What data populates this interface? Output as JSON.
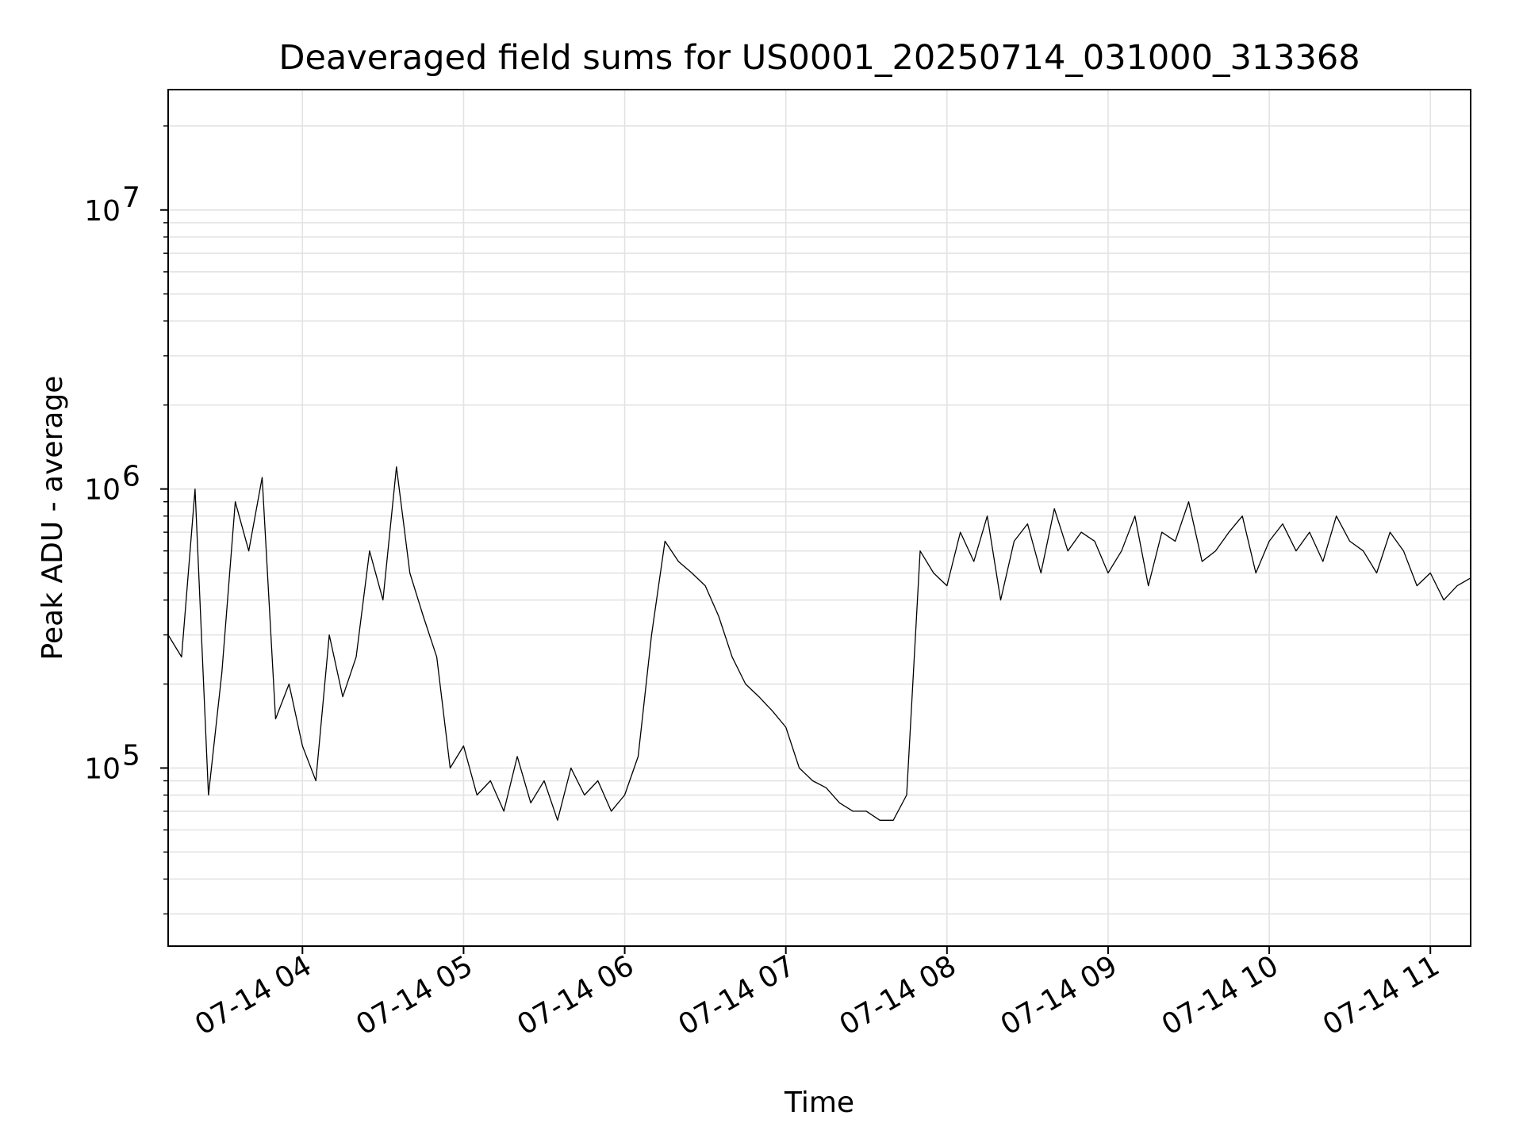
{
  "chart_data": {
    "type": "line",
    "title": "Deaveraged field sums for US0001_20250714_031000_313368",
    "xlabel": "Time",
    "ylabel": "Peak ADU - average",
    "x_axis_type": "time",
    "y_scale": "log",
    "xlim": [
      "2025-07-14 03:10",
      "2025-07-14 11:15"
    ],
    "ylim": [
      23000,
      27000000
    ],
    "grid": true,
    "legend": "none",
    "line_color": "#000000",
    "x_ticks": [
      {
        "value": "2025-07-14 04:00",
        "label": "07-14 04"
      },
      {
        "value": "2025-07-14 05:00",
        "label": "07-14 05"
      },
      {
        "value": "2025-07-14 06:00",
        "label": "07-14 06"
      },
      {
        "value": "2025-07-14 07:00",
        "label": "07-14 07"
      },
      {
        "value": "2025-07-14 08:00",
        "label": "07-14 08"
      },
      {
        "value": "2025-07-14 09:00",
        "label": "07-14 09"
      },
      {
        "value": "2025-07-14 10:00",
        "label": "07-14 10"
      },
      {
        "value": "2025-07-14 11:00",
        "label": "07-14 11"
      }
    ],
    "y_ticks": [
      {
        "value": 100000,
        "base": "10",
        "exp": "5"
      },
      {
        "value": 1000000,
        "base": "10",
        "exp": "6"
      },
      {
        "value": 10000000,
        "base": "10",
        "exp": "7"
      }
    ],
    "series": [
      {
        "x": [
          "2025-07-14 03:10",
          "2025-07-14 03:15",
          "2025-07-14 03:20",
          "2025-07-14 03:25",
          "2025-07-14 03:30",
          "2025-07-14 03:35",
          "2025-07-14 03:40",
          "2025-07-14 03:45",
          "2025-07-14 03:50",
          "2025-07-14 03:55",
          "2025-07-14 04:00",
          "2025-07-14 04:05",
          "2025-07-14 04:10",
          "2025-07-14 04:15",
          "2025-07-14 04:20",
          "2025-07-14 04:25",
          "2025-07-14 04:30",
          "2025-07-14 04:35",
          "2025-07-14 04:40",
          "2025-07-14 04:45",
          "2025-07-14 04:50",
          "2025-07-14 04:55",
          "2025-07-14 05:00",
          "2025-07-14 05:05",
          "2025-07-14 05:10",
          "2025-07-14 05:15",
          "2025-07-14 05:20",
          "2025-07-14 05:25",
          "2025-07-14 05:30",
          "2025-07-14 05:35",
          "2025-07-14 05:40",
          "2025-07-14 05:45",
          "2025-07-14 05:50",
          "2025-07-14 05:55",
          "2025-07-14 06:00",
          "2025-07-14 06:05",
          "2025-07-14 06:10",
          "2025-07-14 06:15",
          "2025-07-14 06:20",
          "2025-07-14 06:25",
          "2025-07-14 06:30",
          "2025-07-14 06:35",
          "2025-07-14 06:40",
          "2025-07-14 06:45",
          "2025-07-14 06:50",
          "2025-07-14 06:55",
          "2025-07-14 07:00",
          "2025-07-14 07:05",
          "2025-07-14 07:10",
          "2025-07-14 07:15",
          "2025-07-14 07:20",
          "2025-07-14 07:25",
          "2025-07-14 07:30",
          "2025-07-14 07:35",
          "2025-07-14 07:40",
          "2025-07-14 07:45",
          "2025-07-14 07:50",
          "2025-07-14 07:55",
          "2025-07-14 08:00",
          "2025-07-14 08:05",
          "2025-07-14 08:10",
          "2025-07-14 08:15",
          "2025-07-14 08:20",
          "2025-07-14 08:25",
          "2025-07-14 08:30",
          "2025-07-14 08:35",
          "2025-07-14 08:40",
          "2025-07-14 08:45",
          "2025-07-14 08:50",
          "2025-07-14 08:55",
          "2025-07-14 09:00",
          "2025-07-14 09:05",
          "2025-07-14 09:10",
          "2025-07-14 09:15",
          "2025-07-14 09:20",
          "2025-07-14 09:25",
          "2025-07-14 09:30",
          "2025-07-14 09:35",
          "2025-07-14 09:40",
          "2025-07-14 09:45",
          "2025-07-14 09:50",
          "2025-07-14 09:55",
          "2025-07-14 10:00",
          "2025-07-14 10:05",
          "2025-07-14 10:10",
          "2025-07-14 10:15",
          "2025-07-14 10:20",
          "2025-07-14 10:25",
          "2025-07-14 10:30",
          "2025-07-14 10:35",
          "2025-07-14 10:40",
          "2025-07-14 10:45",
          "2025-07-14 10:50",
          "2025-07-14 10:55",
          "2025-07-14 11:00",
          "2025-07-14 11:05",
          "2025-07-14 11:10",
          "2025-07-14 11:15"
        ],
        "y": [
          300000,
          250000,
          1000000,
          80000,
          220000,
          900000,
          600000,
          1100000,
          150000,
          200000,
          120000,
          90000,
          300000,
          180000,
          250000,
          600000,
          400000,
          1200000,
          500000,
          350000,
          250000,
          100000,
          120000,
          80000,
          90000,
          70000,
          110000,
          75000,
          90000,
          65000,
          100000,
          80000,
          90000,
          70000,
          80000,
          110000,
          300000,
          650000,
          550000,
          500000,
          450000,
          350000,
          250000,
          200000,
          180000,
          160000,
          140000,
          100000,
          90000,
          85000,
          75000,
          70000,
          70000,
          65000,
          65000,
          80000,
          600000,
          500000,
          450000,
          700000,
          550000,
          800000,
          400000,
          650000,
          750000,
          500000,
          850000,
          600000,
          700000,
          650000,
          500000,
          600000,
          800000,
          450000,
          700000,
          650000,
          900000,
          550000,
          600000,
          700000,
          800000,
          500000,
          650000,
          750000,
          600000,
          700000,
          550000,
          800000,
          650000,
          600000,
          500000,
          700000,
          600000,
          450000,
          500000,
          400000,
          450000,
          480000
        ]
      }
    ]
  }
}
